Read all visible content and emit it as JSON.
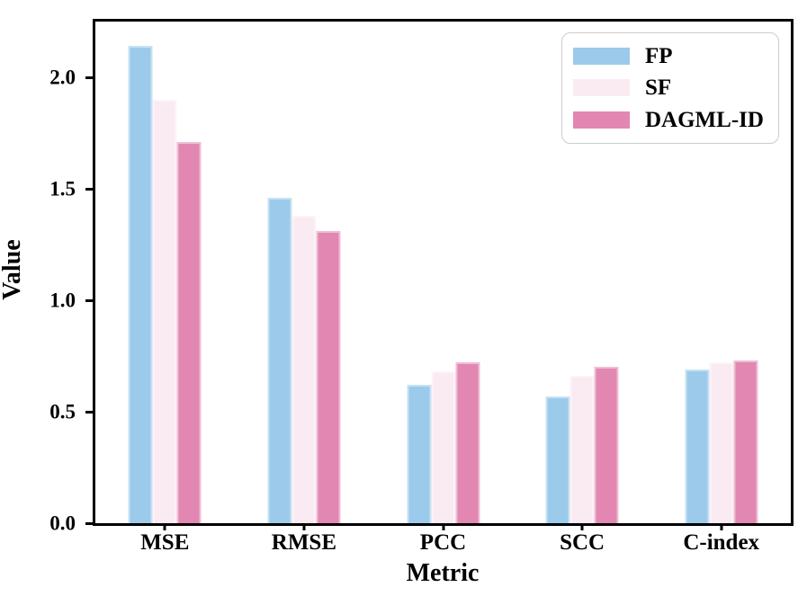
{
  "chart_data": {
    "type": "bar",
    "title": "",
    "xlabel": "Metric",
    "ylabel": "Value",
    "categories": [
      "MSE",
      "RMSE",
      "PCC",
      "SCC",
      "C-index"
    ],
    "series": [
      {
        "name": "FP",
        "color": "#9CCAEA",
        "values": [
          2.14,
          1.46,
          0.62,
          0.57,
          0.69
        ]
      },
      {
        "name": "SF",
        "color": "#FAEBF2",
        "values": [
          1.9,
          1.38,
          0.68,
          0.66,
          0.72
        ]
      },
      {
        "name": "DAGML-ID",
        "color": "#E287B1",
        "values": [
          1.71,
          1.31,
          0.72,
          0.7,
          0.73
        ]
      }
    ],
    "yticks": [
      "0.0",
      "0.5",
      "1.0",
      "1.5",
      "2.0"
    ],
    "ylim": [
      0,
      2.25
    ],
    "grid": false,
    "legend_position": "upper right",
    "axis_color": "#000000",
    "background_color": "#ffffff"
  }
}
